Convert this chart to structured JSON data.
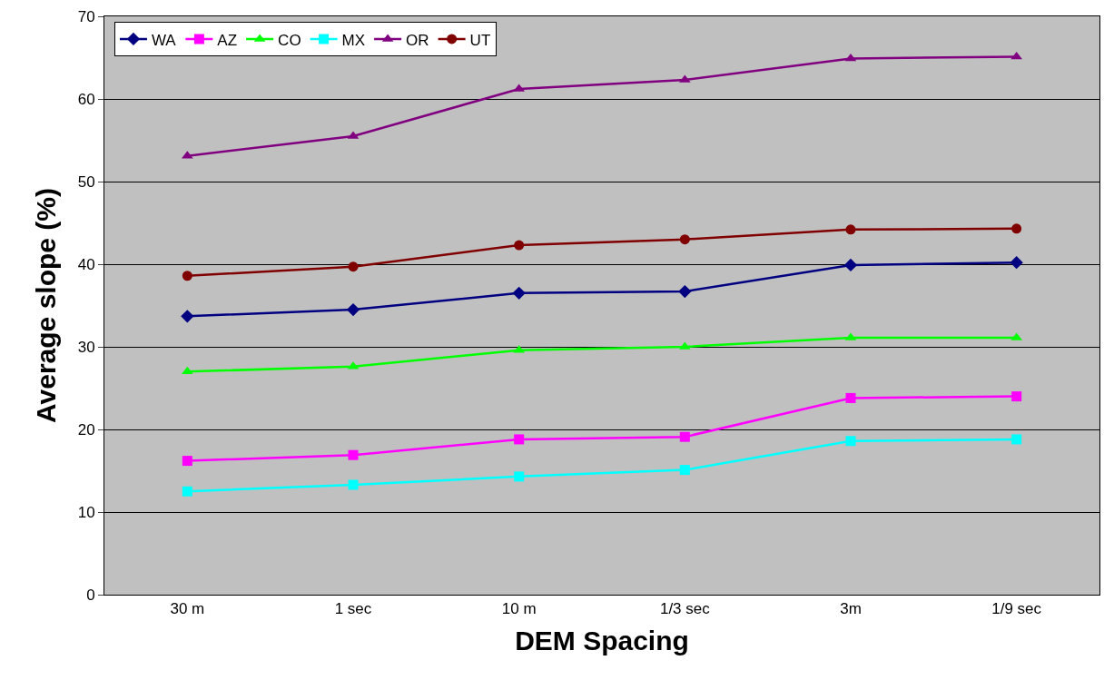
{
  "chart_data": {
    "type": "line",
    "xlabel": "DEM Spacing",
    "ylabel": "Average slope (%)",
    "categories": [
      "30 m",
      "1 sec",
      "10 m",
      "1/3 sec",
      "3m",
      "1/9 sec"
    ],
    "series": [
      {
        "name": "WA",
        "color": "#000080",
        "marker": "diamond",
        "values": [
          33.7,
          34.5,
          36.5,
          36.7,
          39.9,
          40.2
        ]
      },
      {
        "name": "AZ",
        "color": "#ff00ff",
        "marker": "square",
        "values": [
          16.2,
          16.9,
          18.8,
          19.1,
          23.8,
          24.0
        ]
      },
      {
        "name": "CO",
        "color": "#00ff00",
        "marker": "triangle",
        "values": [
          27.0,
          27.6,
          29.6,
          30.0,
          31.1,
          31.1
        ]
      },
      {
        "name": "MX",
        "color": "#00ffff",
        "marker": "square",
        "values": [
          12.5,
          13.3,
          14.3,
          15.1,
          18.6,
          18.8
        ]
      },
      {
        "name": "OR",
        "color": "#800080",
        "marker": "triangle",
        "values": [
          53.1,
          55.5,
          61.2,
          62.3,
          64.9,
          65.1
        ]
      },
      {
        "name": "UT",
        "color": "#800000",
        "marker": "circle",
        "values": [
          38.6,
          39.7,
          42.3,
          43.0,
          44.2,
          44.3
        ]
      }
    ],
    "ylim": [
      0,
      70
    ],
    "yticks": [
      0,
      10,
      20,
      30,
      40,
      50,
      60,
      70
    ],
    "grid": "y",
    "legend": "top left",
    "line_style": "solid"
  }
}
